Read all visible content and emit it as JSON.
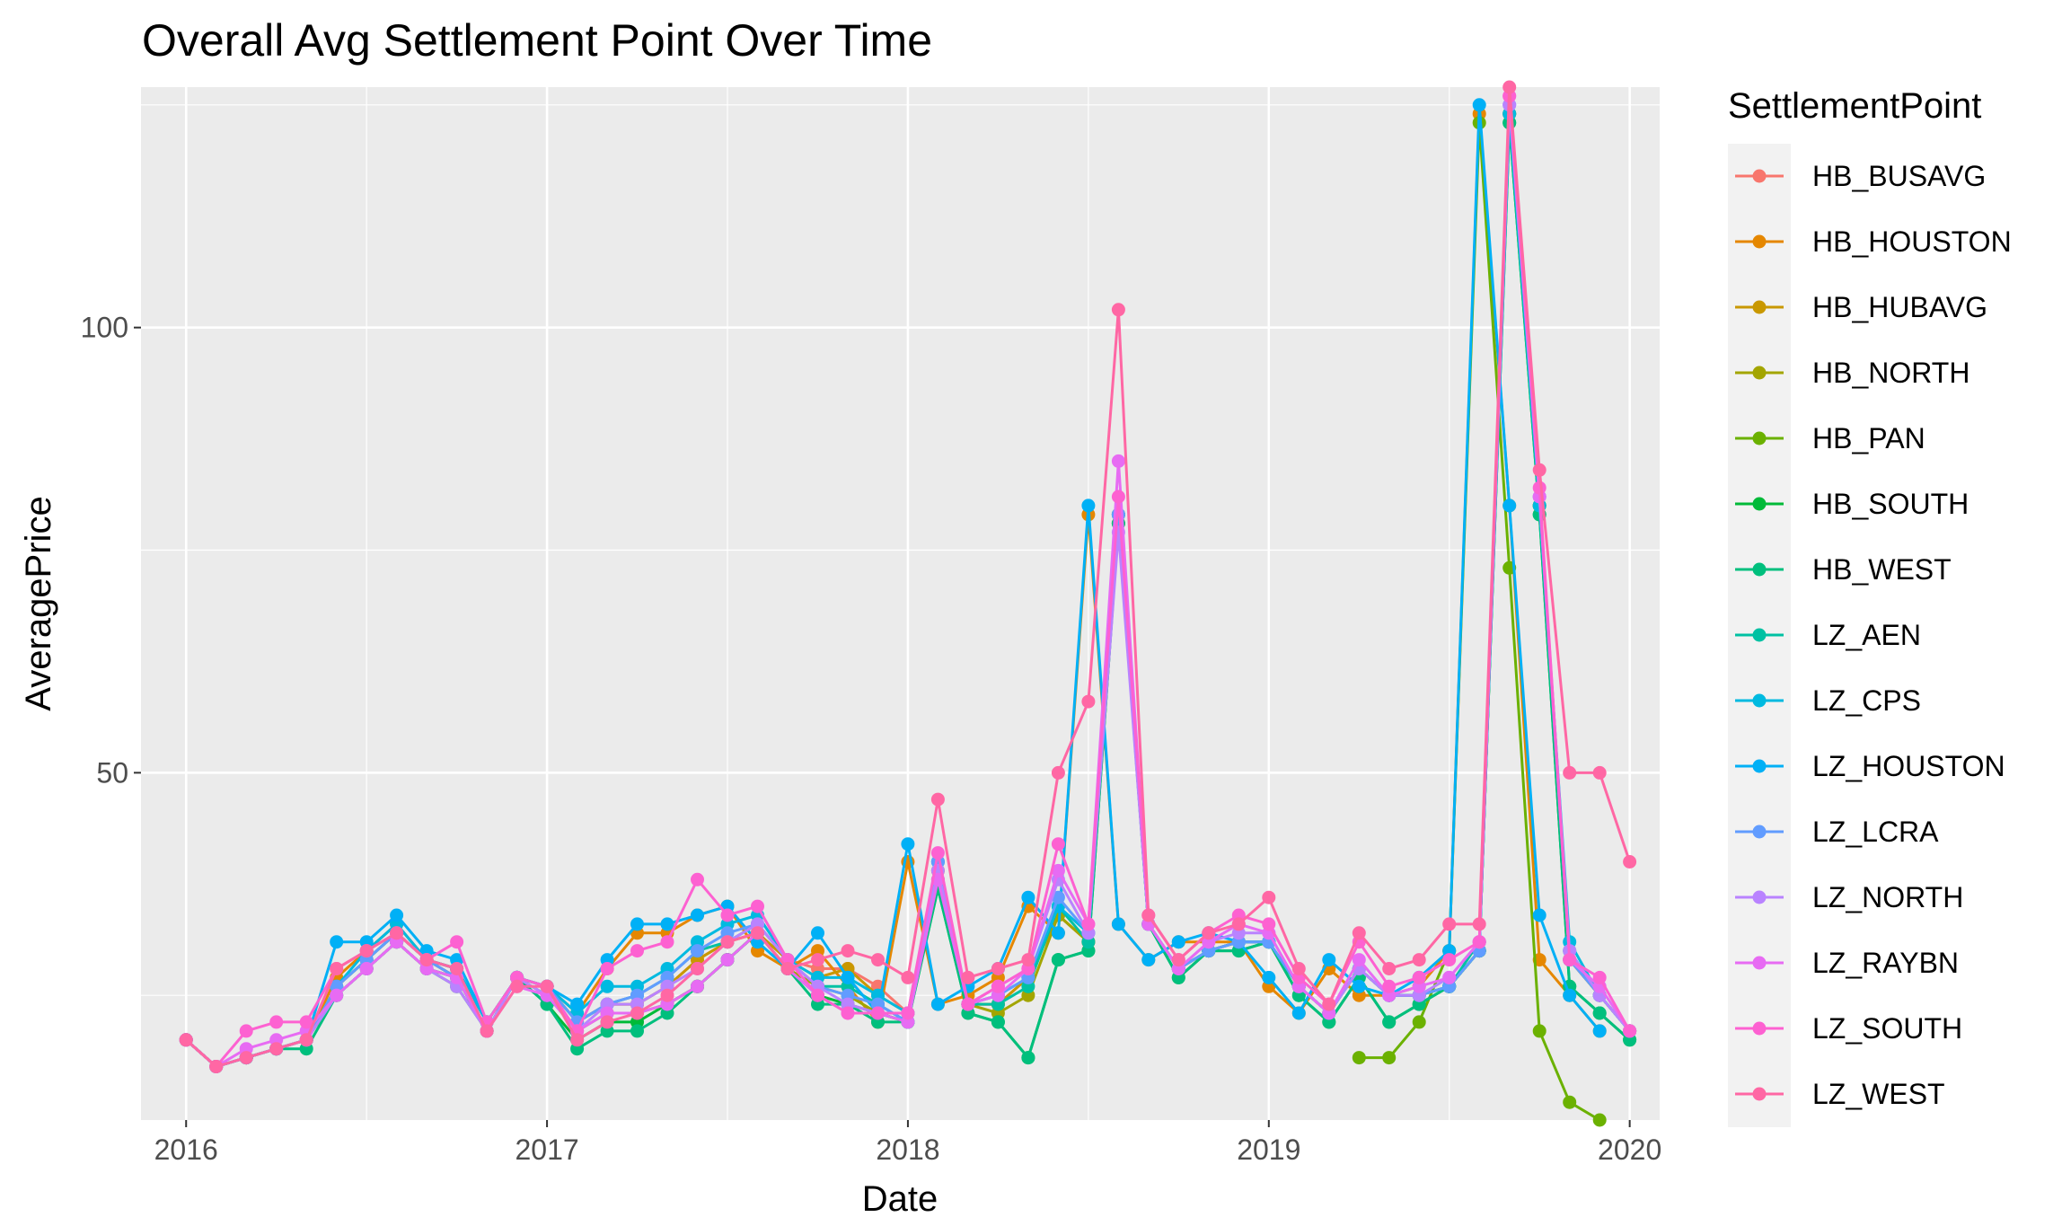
{
  "chart_data": {
    "type": "line",
    "title": "Overall Avg Settlement Point Over Time",
    "xlabel": "Date",
    "ylabel": "AveragePrice",
    "legend_title": "SettlementPoint",
    "legend_position": "right",
    "grid": true,
    "xlim": [
      2015.875,
      2020.083
    ],
    "ylim": [
      11,
      127
    ],
    "x_ticks": [
      2016,
      2017,
      2018,
      2019,
      2020
    ],
    "x_tick_labels": [
      "2016",
      "2017",
      "2018",
      "2019",
      "2020"
    ],
    "y_ticks": [
      50,
      100
    ],
    "y_tick_labels": [
      "50",
      "100"
    ],
    "series": [
      {
        "name": "HB_BUSAVG",
        "color": "#F8766D",
        "x_start": 2016,
        "values": [
          20,
          17,
          18,
          19,
          20,
          26,
          29,
          32,
          29,
          27,
          21,
          27,
          26,
          22,
          24,
          24,
          26,
          29,
          31,
          32,
          29,
          28,
          28,
          26,
          23,
          39,
          24,
          24,
          27,
          34,
          31,
          79,
          33,
          28,
          30,
          31,
          31,
          26,
          23,
          28,
          25,
          25,
          26,
          30,
          124,
          80,
          29,
          25,
          21
        ]
      },
      {
        "name": "HB_HOUSTON",
        "color": "#E58700",
        "x_start": 2016,
        "values": [
          20,
          17,
          18,
          19,
          20,
          27,
          30,
          33,
          29,
          28,
          22,
          27,
          26,
          23,
          28,
          32,
          32,
          34,
          35,
          30,
          28,
          30,
          26,
          22,
          40,
          24,
          25,
          27,
          35,
          32,
          79,
          33,
          29,
          31,
          31,
          31,
          26,
          23,
          28,
          25,
          25,
          26,
          30,
          124,
          80,
          29,
          25,
          21
        ]
      },
      {
        "name": "HB_HUBAVG",
        "color": "#C99800",
        "x_start": 2016,
        "values": [
          20,
          17,
          18,
          19,
          20,
          26,
          29,
          32,
          29,
          27,
          21,
          27,
          26,
          22,
          24,
          24,
          26,
          29,
          31,
          32,
          29,
          27,
          28,
          25,
          23,
          39,
          24,
          24,
          27,
          34,
          31,
          79,
          33,
          28,
          30,
          31,
          31,
          26,
          23,
          28,
          25,
          25,
          26,
          30,
          124,
          80,
          29,
          25,
          21
        ]
      },
      {
        "name": "HB_NORTH",
        "color": "#A3A500",
        "x_start": 2016,
        "values": [
          20,
          17,
          18,
          19,
          20,
          25,
          28,
          31,
          28,
          27,
          21,
          27,
          25,
          21,
          23,
          23,
          24,
          26,
          29,
          32,
          28,
          26,
          25,
          23,
          22,
          38,
          24,
          23,
          25,
          34,
          31,
          78,
          33,
          28,
          30,
          31,
          31,
          26,
          23,
          28,
          25,
          25,
          26,
          30,
          124,
          80,
          29,
          25,
          21
        ]
      },
      {
        "name": "HB_PAN",
        "color": "#6BB100",
        "x_start": 2019.25,
        "values": [
          18,
          18,
          22,
          30,
          123,
          73,
          21,
          13,
          11
        ]
      },
      {
        "name": "HB_SOUTH",
        "color": "#00BA38",
        "x_start": 2016,
        "values": [
          20,
          17,
          18,
          19,
          20,
          25,
          28,
          31,
          28,
          26,
          21,
          27,
          24,
          20,
          22,
          22,
          24,
          26,
          29,
          32,
          28,
          25,
          24,
          23,
          22,
          37,
          23,
          22,
          18,
          29,
          30,
          78,
          33,
          27,
          30,
          30,
          31,
          25,
          22,
          27,
          22,
          24,
          26,
          30,
          123,
          79,
          26,
          23,
          20
        ]
      },
      {
        "name": "HB_WEST",
        "color": "#00BF7D",
        "x_start": 2016,
        "values": [
          20,
          17,
          18,
          19,
          19,
          25,
          28,
          31,
          28,
          27,
          21,
          27,
          24,
          19,
          21,
          21,
          23,
          26,
          29,
          32,
          28,
          24,
          24,
          22,
          22,
          37,
          23,
          22,
          18,
          29,
          30,
          78,
          33,
          27,
          30,
          30,
          31,
          25,
          22,
          27,
          22,
          24,
          26,
          30,
          123,
          79,
          26,
          23,
          20
        ]
      },
      {
        "name": "LZ_AEN",
        "color": "#00C1A3",
        "x_start": 2016,
        "values": [
          20,
          17,
          18,
          19,
          20,
          26,
          29,
          32,
          29,
          28,
          22,
          27,
          26,
          22,
          24,
          25,
          27,
          30,
          31,
          33,
          29,
          26,
          26,
          24,
          22,
          40,
          24,
          24,
          26,
          35,
          31,
          79,
          33,
          28,
          30,
          31,
          31,
          26,
          23,
          28,
          25,
          25,
          26,
          31,
          124,
          80,
          30,
          25,
          21
        ]
      },
      {
        "name": "LZ_CPS",
        "color": "#00BAE0",
        "x_start": 2016,
        "values": [
          20,
          17,
          18,
          19,
          20,
          26,
          30,
          33,
          29,
          28,
          22,
          27,
          26,
          23,
          26,
          26,
          28,
          31,
          33,
          34,
          29,
          27,
          27,
          25,
          23,
          40,
          24,
          25,
          27,
          35,
          32,
          79,
          33,
          28,
          30,
          31,
          31,
          26,
          23,
          28,
          25,
          25,
          26,
          30,
          124,
          80,
          31,
          25,
          21
        ]
      },
      {
        "name": "LZ_HOUSTON",
        "color": "#00B0F6",
        "x_start": 2016,
        "values": [
          20,
          17,
          18,
          19,
          20,
          31,
          31,
          34,
          30,
          29,
          22,
          27,
          26,
          24,
          29,
          33,
          33,
          34,
          35,
          31,
          28,
          32,
          27,
          23,
          42,
          24,
          26,
          28,
          36,
          32,
          80,
          33,
          29,
          31,
          32,
          31,
          27,
          23,
          29,
          26,
          25,
          27,
          30,
          125,
          80,
          34,
          25,
          21
        ]
      },
      {
        "name": "LZ_LCRA",
        "color": "#619CFF",
        "x_start": 2016,
        "values": [
          20,
          17,
          18,
          19,
          20,
          26,
          29,
          32,
          29,
          27,
          21,
          27,
          26,
          22,
          24,
          25,
          27,
          30,
          32,
          33,
          29,
          26,
          25,
          24,
          22,
          40,
          24,
          25,
          27,
          36,
          32,
          79,
          33,
          28,
          30,
          31,
          31,
          26,
          23,
          28,
          25,
          25,
          26,
          30,
          125,
          81,
          29,
          25,
          21
        ]
      },
      {
        "name": "LZ_NORTH",
        "color": "#B983FF",
        "x_start": 2016,
        "values": [
          20,
          17,
          18,
          19,
          20,
          25,
          28,
          31,
          28,
          26,
          21,
          27,
          25,
          21,
          24,
          24,
          26,
          28,
          31,
          33,
          29,
          26,
          24,
          23,
          23,
          39,
          24,
          26,
          28,
          38,
          32,
          77,
          33,
          28,
          31,
          32,
          32,
          26,
          23,
          28,
          25,
          25,
          27,
          31,
          125,
          81,
          30,
          25,
          21
        ]
      },
      {
        "name": "LZ_RAYBN",
        "color": "#E76BF3",
        "x_start": 2016,
        "values": [
          20,
          17,
          19,
          20,
          21,
          25,
          28,
          31,
          28,
          27,
          21,
          26,
          25,
          21,
          23,
          23,
          24,
          26,
          29,
          32,
          28,
          25,
          23,
          23,
          22,
          38,
          24,
          25,
          28,
          39,
          33,
          85,
          33,
          28,
          31,
          33,
          32,
          26,
          23,
          29,
          25,
          26,
          27,
          31,
          126,
          81,
          29,
          26,
          21
        ]
      },
      {
        "name": "LZ_SOUTH",
        "color": "#FD61D1",
        "x_start": 2016,
        "values": [
          20,
          17,
          21,
          22,
          22,
          28,
          30,
          32,
          29,
          31,
          22,
          27,
          26,
          21,
          28,
          30,
          31,
          38,
          34,
          35,
          29,
          25,
          23,
          23,
          23,
          41,
          24,
          26,
          28,
          42,
          33,
          81,
          34,
          29,
          32,
          34,
          33,
          27,
          24,
          31,
          26,
          27,
          29,
          31,
          126,
          82,
          29,
          27,
          21
        ]
      },
      {
        "name": "LZ_WEST",
        "color": "#FF67A4",
        "x_start": 2016,
        "values": [
          20,
          17,
          18,
          19,
          20,
          28,
          30,
          32,
          29,
          28,
          21,
          26,
          26,
          20,
          22,
          23,
          25,
          28,
          31,
          32,
          28,
          29,
          30,
          29,
          27,
          47,
          27,
          28,
          29,
          50,
          58,
          102,
          34,
          29,
          32,
          33,
          36,
          28,
          24,
          32,
          28,
          29,
          33,
          33,
          127,
          84,
          50,
          50,
          40
        ]
      }
    ]
  }
}
